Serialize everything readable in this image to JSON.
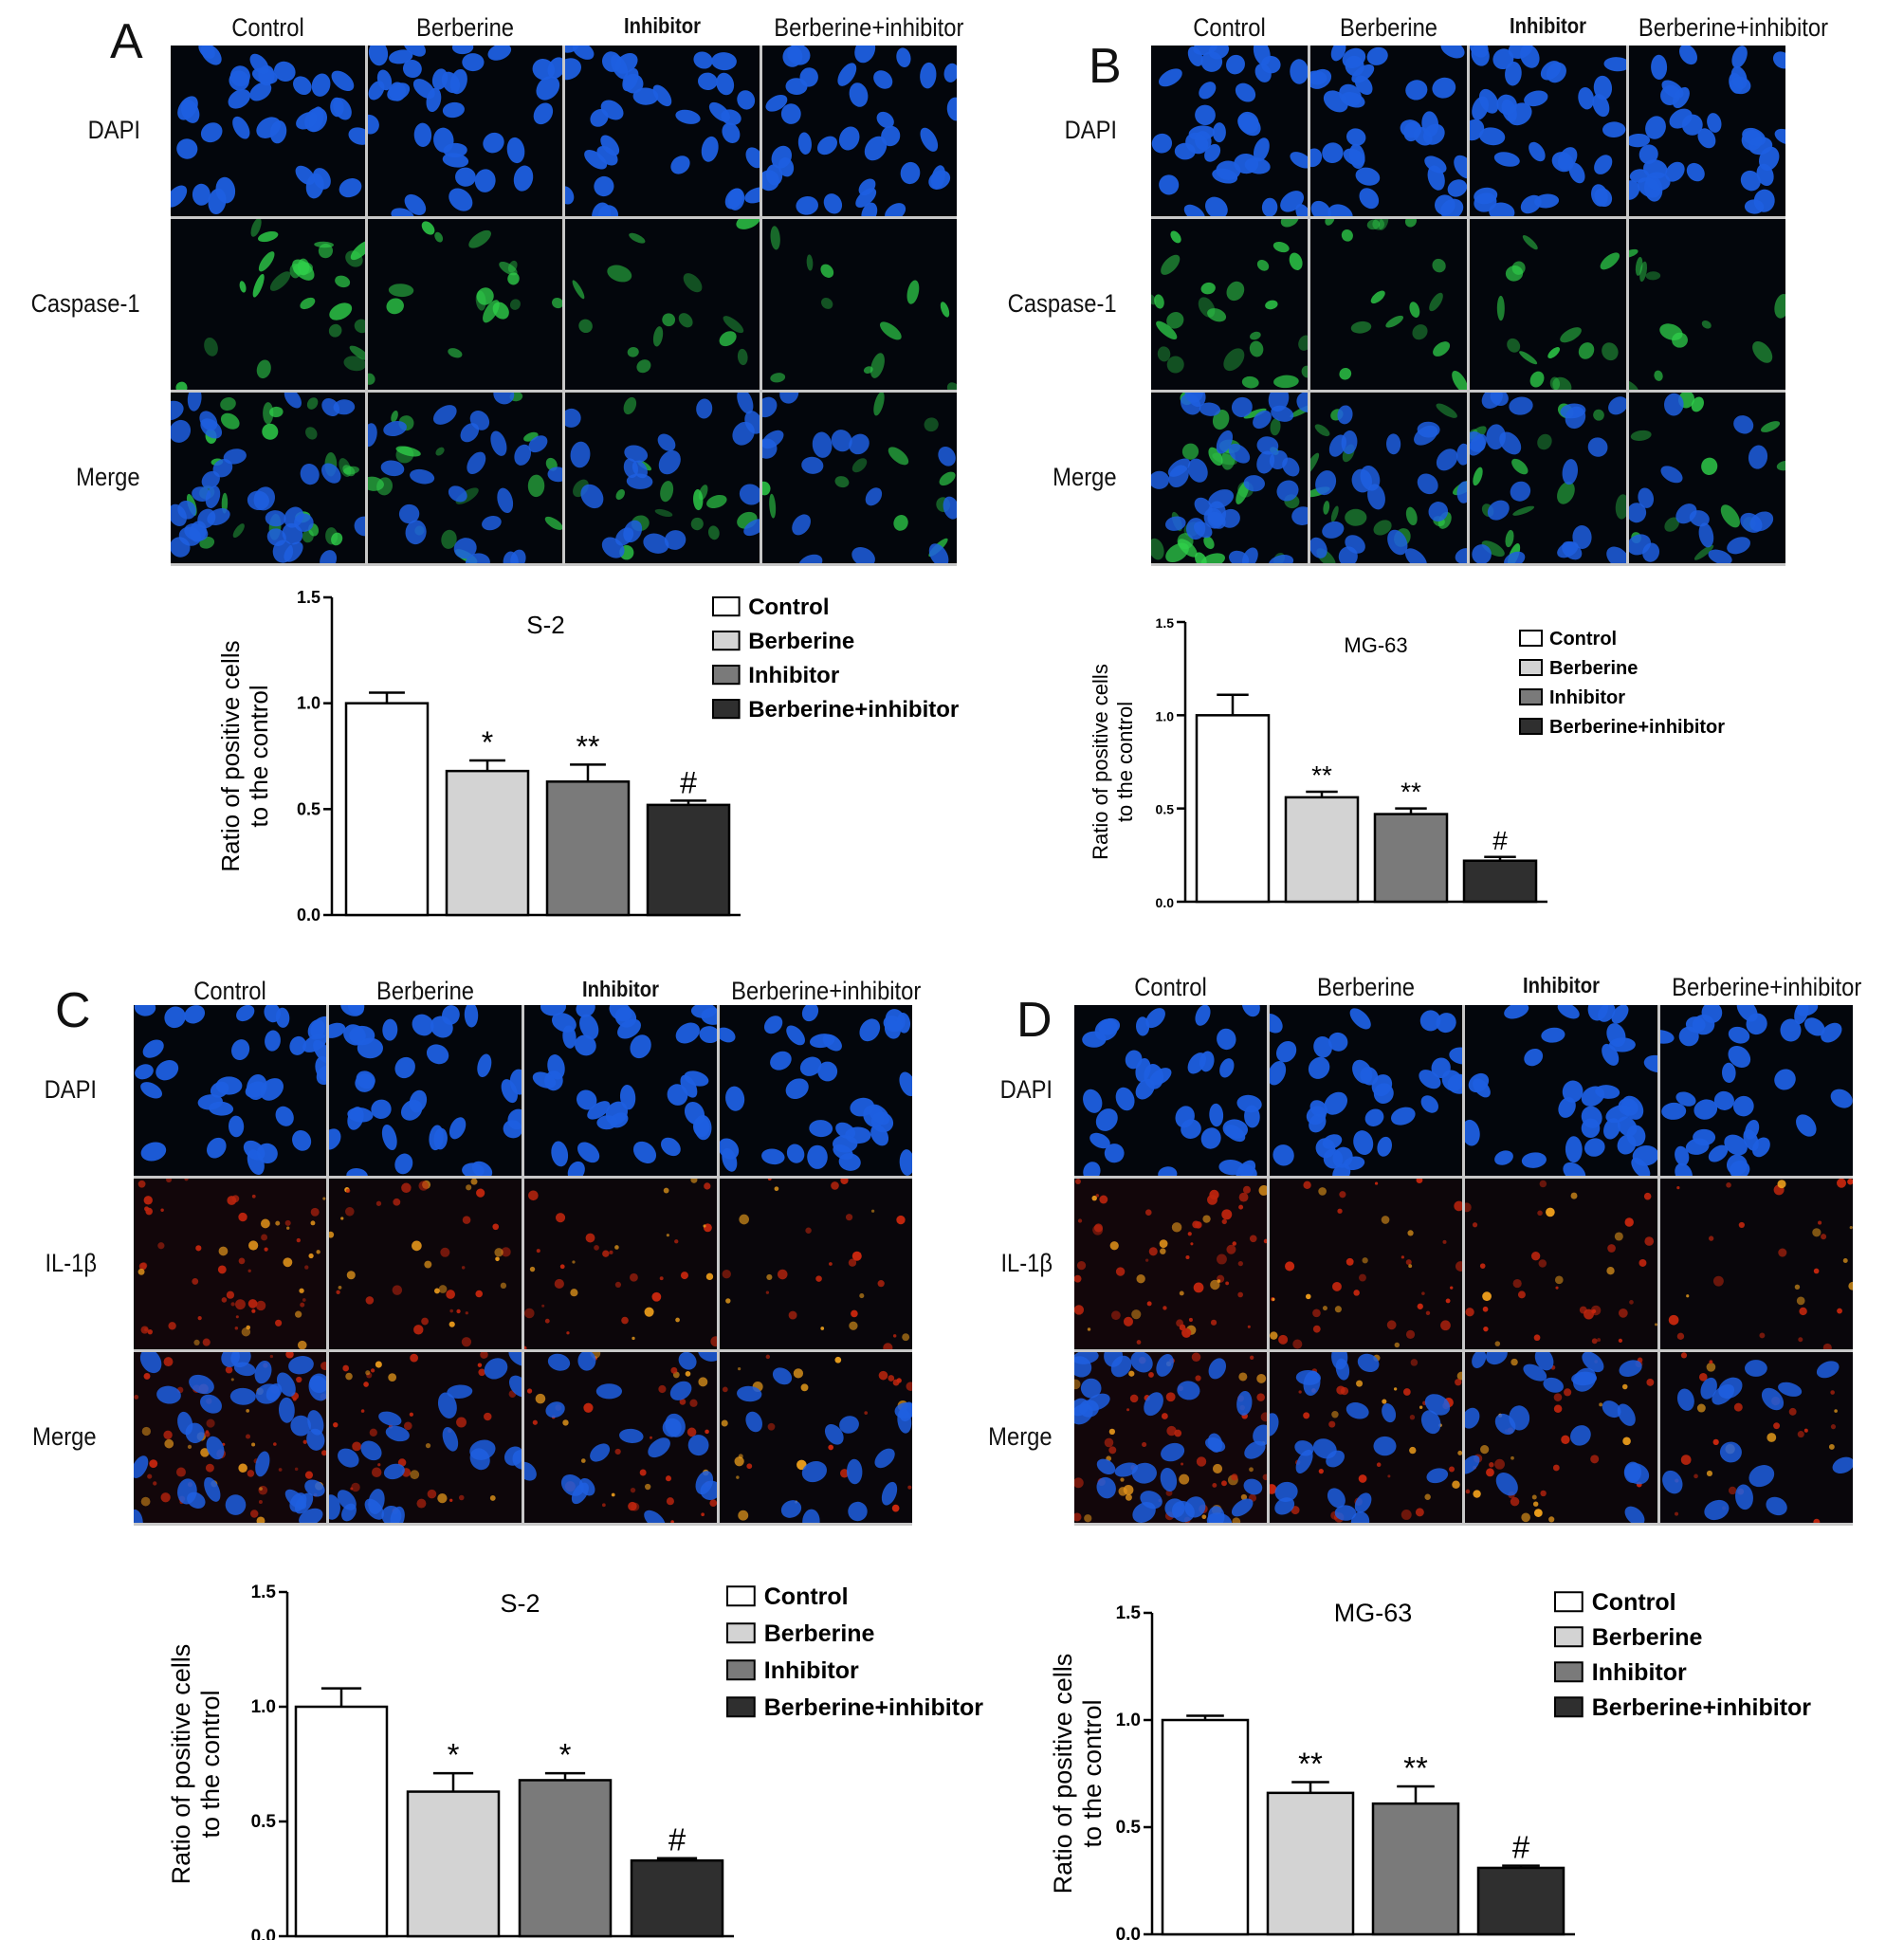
{
  "figures": [
    {
      "letter": "A",
      "columns": [
        "Control",
        "Berberine",
        "Inhibitor",
        "Berberine+inhibitor"
      ],
      "rows": [
        "DAPI",
        "Caspase-1",
        "Merge"
      ],
      "stain_colors": {
        "nuclear": "#1e5fe0",
        "marker": "#2fd04a"
      }
    },
    {
      "letter": "B",
      "columns": [
        "Control",
        "Berberine",
        "Inhibitor",
        "Berberine+inhibitor"
      ],
      "rows": [
        "DAPI",
        "Caspase-1",
        "Merge"
      ],
      "stain_colors": {
        "nuclear": "#1e5fe0",
        "marker": "#2fd04a"
      }
    },
    {
      "letter": "C",
      "columns": [
        "Control",
        "Berberine",
        "Inhibitor",
        "Berberine+inhibitor"
      ],
      "rows": [
        "DAPI",
        "IL-1β",
        "Merge"
      ],
      "stain_colors": {
        "nuclear": "#1e5fe0",
        "marker": "#d22a10"
      }
    },
    {
      "letter": "D",
      "columns": [
        "Control",
        "Berberine",
        "Inhibitor",
        "Berberine+inhibitor"
      ],
      "rows": [
        "DAPI",
        "IL-1β",
        "Merge"
      ],
      "stain_colors": {
        "nuclear": "#1e5fe0",
        "marker": "#d22a10"
      }
    }
  ],
  "chart_data": [
    {
      "type": "bar",
      "title": "S-2",
      "ylabel": [
        "Ratio of positive cells",
        "to the control"
      ],
      "categories": [
        "Control",
        "Berberine",
        "Inhibitor",
        "Berberine+inhibitor"
      ],
      "values": [
        1.0,
        0.68,
        0.63,
        0.52
      ],
      "errors": [
        0.05,
        0.05,
        0.08,
        0.02
      ],
      "annotations": [
        "",
        "*",
        "**",
        "#"
      ],
      "colors": [
        "#ffffff",
        "#d3d3d3",
        "#7a7a7a",
        "#2f2f2f"
      ],
      "ylim": [
        0,
        1.5
      ],
      "yticks": [
        "0.0",
        "0.5",
        "1.0",
        "1.5"
      ],
      "legend_position": "right"
    },
    {
      "type": "bar",
      "title": "MG-63",
      "ylabel": [
        "Ratio of positive cells",
        "to the control"
      ],
      "categories": [
        "Control",
        "Berberine",
        "Inhibitor",
        "Berberine+inhibitor"
      ],
      "values": [
        1.0,
        0.56,
        0.47,
        0.22
      ],
      "errors": [
        0.11,
        0.03,
        0.03,
        0.02
      ],
      "annotations": [
        "",
        "**",
        "**",
        "#"
      ],
      "colors": [
        "#ffffff",
        "#d3d3d3",
        "#7a7a7a",
        "#2f2f2f"
      ],
      "ylim": [
        0,
        1.5
      ],
      "yticks": [
        "0.0",
        "0.5",
        "1.0",
        "1.5"
      ],
      "legend_position": "right"
    },
    {
      "type": "bar",
      "title": "S-2",
      "ylabel": [
        "Ratio of positive cells",
        "to the control"
      ],
      "categories": [
        "Control",
        "Berberine",
        "Inhibitor",
        "Berberine+inhibitor"
      ],
      "values": [
        1.0,
        0.63,
        0.68,
        0.33
      ],
      "errors": [
        0.08,
        0.08,
        0.03,
        0.01
      ],
      "annotations": [
        "",
        "*",
        "*",
        "#"
      ],
      "colors": [
        "#ffffff",
        "#d3d3d3",
        "#7a7a7a",
        "#2f2f2f"
      ],
      "ylim": [
        0,
        1.5
      ],
      "yticks": [
        "0.0",
        "0.5",
        "1.0",
        "1.5"
      ],
      "legend_position": "right"
    },
    {
      "type": "bar",
      "title": "MG-63",
      "ylabel": [
        "Ratio of positive cells",
        "to the control"
      ],
      "categories": [
        "Control",
        "Berberine",
        "Inhibitor",
        "Berberine+inhibitor"
      ],
      "values": [
        1.0,
        0.66,
        0.61,
        0.31
      ],
      "errors": [
        0.02,
        0.05,
        0.08,
        0.01
      ],
      "annotations": [
        "",
        "**",
        "**",
        "#"
      ],
      "colors": [
        "#ffffff",
        "#d3d3d3",
        "#7a7a7a",
        "#2f2f2f"
      ],
      "ylim": [
        0,
        1.5
      ],
      "yticks": [
        "0.0",
        "0.5",
        "1.0",
        "1.5"
      ],
      "legend_position": "right"
    }
  ]
}
